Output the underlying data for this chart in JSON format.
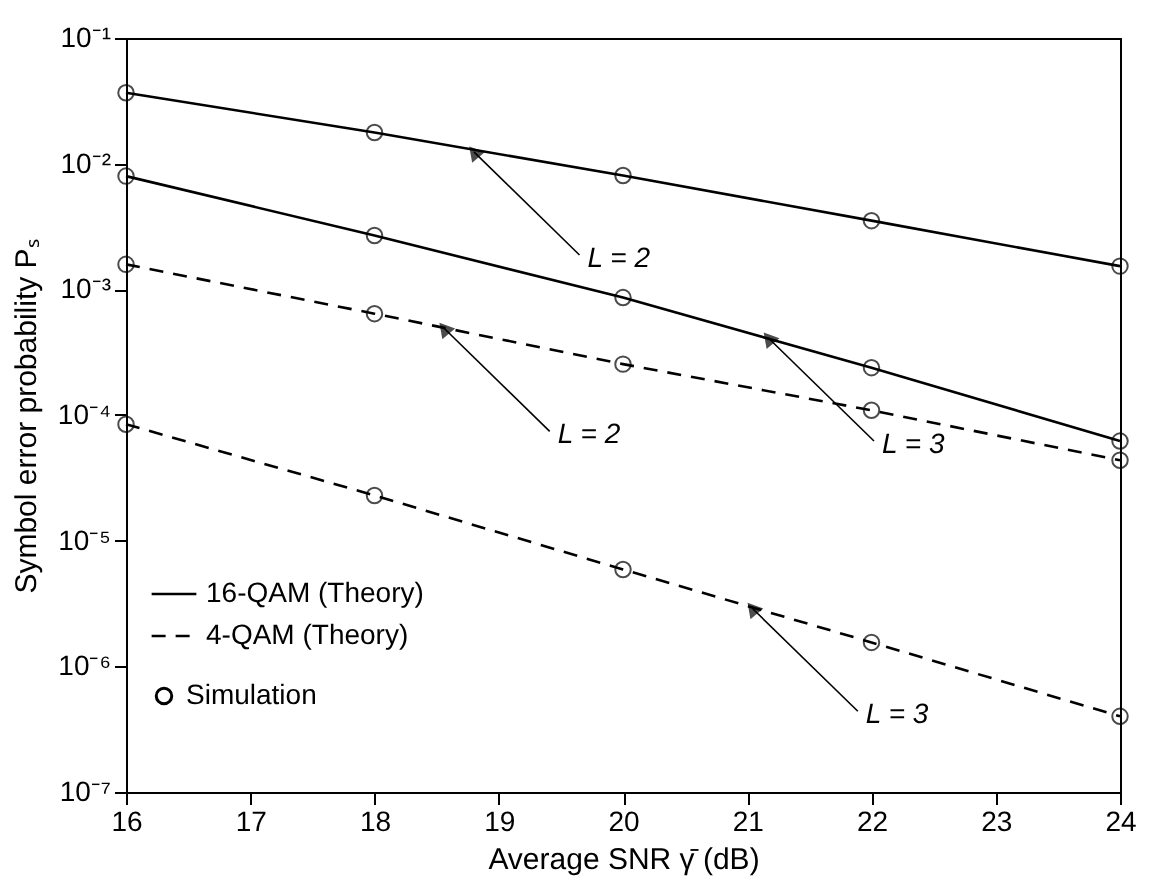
{
  "chart_data": {
    "type": "line",
    "xlabel": "Average SNR γ̄ (dB)",
    "ylabel": "Symbol error probability Pₛ",
    "x": [
      16,
      18,
      20,
      22,
      24
    ],
    "series": [
      {
        "name": "16-QAM (Theory)",
        "color": "#000000",
        "line_style": "solid",
        "values": [
          0.0367,
          0.0177,
          0.00805,
          0.00352,
          0.00153
        ]
      },
      {
        "color": "#000000",
        "line_style": "solid",
        "values": [
          0.00796,
          0.00268,
          0.00086,
          0.000238,
          6.2e-05
        ]
      },
      {
        "name": "4-QAM (Theory)",
        "color": "#000000",
        "line_style": "dashed",
        "values": [
          0.00158,
          0.00064,
          0.000254,
          0.000109,
          4.36e-05
        ]
      },
      {
        "color": "#000000",
        "line_style": "dashed",
        "values": [
          8.45e-05,
          2.29e-05,
          5.9e-06,
          1.55e-06,
          4e-07
        ]
      },
      {
        "name": "Simulation",
        "type": "scatter",
        "marker": "circle",
        "color": "#000000",
        "x": [
          16,
          18,
          20,
          22,
          24,
          16,
          18,
          20,
          22,
          24,
          16,
          18,
          20,
          22,
          24,
          16,
          18,
          20,
          22,
          24
        ],
        "values": [
          0.0367,
          0.0177,
          0.00805,
          0.00352,
          0.00153,
          0.00796,
          0.00268,
          0.00086,
          0.000238,
          6.2e-05,
          0.00158,
          0.00064,
          0.000254,
          0.000109,
          4.36e-05,
          8.45e-05,
          2.29e-05,
          5.9e-06,
          1.55e-06,
          4e-07
        ]
      }
    ],
    "annotations": [
      {
        "text": "L = 2",
        "x": 18.8,
        "y": 0.0124
      },
      {
        "text": "L = 2",
        "x": 18.56,
        "y": 0.00049
      },
      {
        "text": "L = 3",
        "x": 21.17,
        "y": 0.00041
      },
      {
        "text": "L = 3",
        "x": 21.04,
        "y": 2.9e-06
      }
    ],
    "xlim": [
      16,
      24
    ],
    "xticks": [
      16,
      17,
      18,
      19,
      20,
      21,
      22,
      23,
      24
    ],
    "ylim": [
      1e-07,
      0.1
    ],
    "yticks": [
      {
        "value": 1e-07,
        "label": "10⁻⁷"
      },
      {
        "value": 1e-06,
        "label": "10⁻⁶"
      },
      {
        "value": 1e-05,
        "label": "10⁻⁵"
      },
      {
        "value": 0.0001,
        "label": "10⁻⁴"
      },
      {
        "value": 0.001,
        "label": "10⁻³"
      },
      {
        "value": 0.01,
        "label": "10⁻²"
      },
      {
        "value": 0.1,
        "label": "10⁻¹"
      }
    ],
    "log": "y",
    "grid": false,
    "legend": "bottom left"
  }
}
